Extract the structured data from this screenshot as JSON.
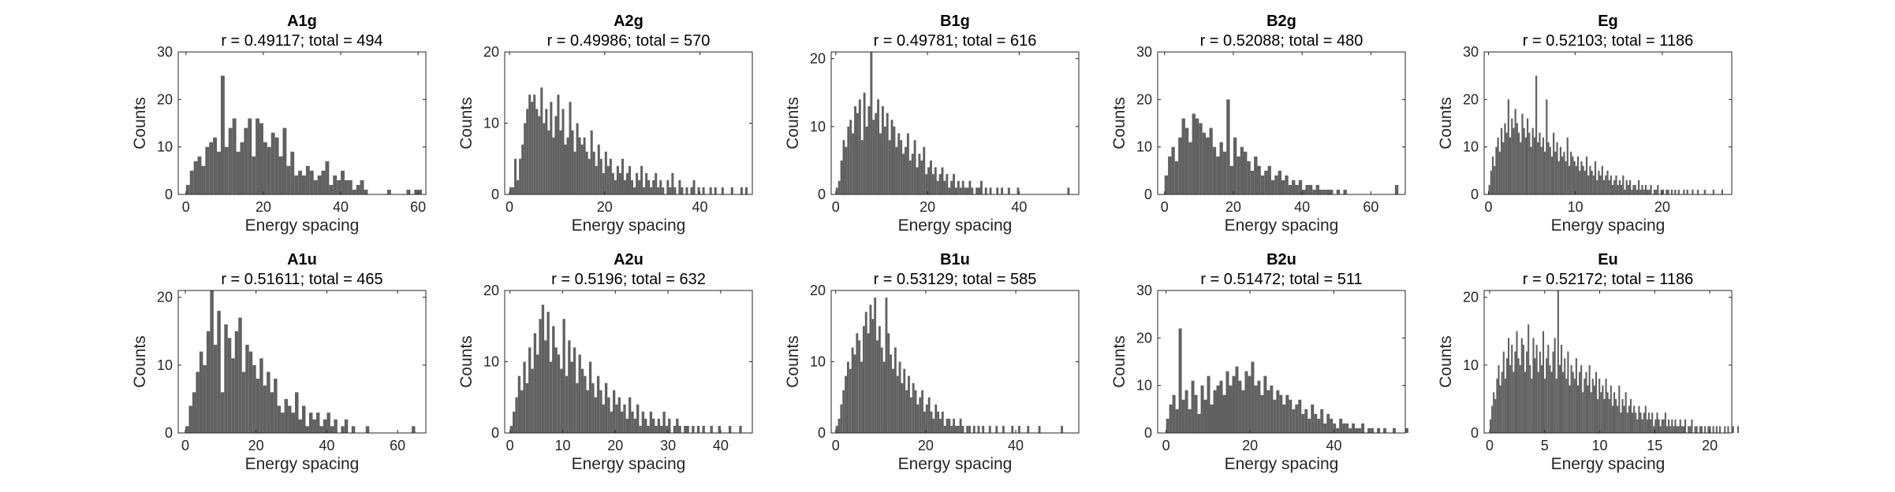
{
  "chart_data": [
    {
      "type": "bar",
      "title": "A1g",
      "subtitle": "r = 0.49117; total = 494",
      "xlabel": "Energy spacing",
      "ylabel": "Counts",
      "xlim": [
        -2,
        62
      ],
      "ylim": [
        0,
        30
      ],
      "xticks": [
        0,
        20,
        40,
        60
      ],
      "yticks": [
        0,
        10,
        20,
        30
      ],
      "bar_color": "#616161",
      "bin_width": 1,
      "bin_start": 0,
      "counts": [
        2,
        5,
        7,
        8,
        6,
        10,
        11,
        12,
        9,
        25,
        10,
        14,
        16,
        9,
        11,
        14,
        16,
        8,
        16,
        15,
        11,
        10,
        13,
        12,
        8,
        14,
        6,
        9,
        4,
        5,
        4,
        6,
        5,
        3,
        4,
        5,
        7,
        2,
        4,
        3,
        5,
        3,
        3,
        1,
        2,
        3,
        1,
        0,
        0,
        0,
        0,
        0,
        1,
        0,
        0,
        0,
        0,
        1,
        0,
        1,
        1
      ]
    },
    {
      "type": "bar",
      "title": "A2g",
      "subtitle": "r = 0.49986; total = 570",
      "xlabel": "Energy spacing",
      "ylabel": "Counts",
      "xlim": [
        -1,
        51
      ],
      "ylim": [
        0,
        20
      ],
      "xticks": [
        0,
        20,
        40
      ],
      "yticks": [
        0,
        10,
        20
      ],
      "bar_color": "#616161",
      "bin_width": 0.5,
      "bin_start": 0,
      "counts": [
        1,
        1,
        5,
        2,
        5,
        7,
        10,
        12,
        14,
        13,
        14,
        12,
        11,
        15,
        10,
        12,
        9,
        13,
        8,
        11,
        14,
        9,
        12,
        7,
        8,
        13,
        9,
        6,
        10,
        8,
        7,
        8,
        6,
        5,
        9,
        6,
        4,
        7,
        5,
        3,
        6,
        4,
        5,
        3,
        2,
        4,
        3,
        5,
        2,
        3,
        4,
        2,
        1,
        3,
        2,
        4,
        1,
        3,
        2,
        1,
        2,
        3,
        1,
        2,
        1,
        0,
        2,
        1,
        3,
        1,
        0,
        2,
        1,
        0,
        1,
        0,
        1,
        2,
        0,
        1,
        0,
        1,
        0,
        0,
        1,
        0,
        1,
        0,
        0,
        1,
        0,
        0,
        0,
        1,
        0,
        0,
        0,
        1,
        0,
        1
      ]
    },
    {
      "type": "bar",
      "title": "B1g",
      "subtitle": "r = 0.49781; total = 616",
      "xlabel": "Energy spacing",
      "ylabel": "Counts",
      "xlim": [
        -1,
        53
      ],
      "ylim": [
        0,
        21
      ],
      "xticks": [
        0,
        20,
        40
      ],
      "yticks": [
        0,
        10,
        20
      ],
      "bar_color": "#616161",
      "bin_width": 0.5,
      "bin_start": 0,
      "counts": [
        1,
        2,
        5,
        8,
        7,
        10,
        11,
        9,
        13,
        12,
        14,
        8,
        15,
        10,
        13,
        21,
        11,
        12,
        14,
        9,
        13,
        10,
        12,
        8,
        11,
        10,
        7,
        9,
        8,
        6,
        7,
        9,
        5,
        6,
        8,
        4,
        6,
        5,
        7,
        3,
        4,
        5,
        3,
        4,
        2,
        3,
        4,
        2,
        3,
        1,
        2,
        3,
        1,
        2,
        1,
        2,
        1,
        1,
        2,
        1,
        0,
        1,
        1,
        2,
        0,
        1,
        0,
        1,
        0,
        0,
        1,
        0,
        1,
        0,
        0,
        1,
        0,
        0,
        0,
        1,
        0,
        0,
        0,
        0,
        0,
        0,
        0,
        0,
        0,
        0,
        0,
        0,
        0,
        0,
        0,
        0,
        0,
        0,
        0,
        0,
        0,
        1
      ]
    },
    {
      "type": "bar",
      "title": "B2g",
      "subtitle": "r = 0.52088; total = 480",
      "xlabel": "Energy spacing",
      "ylabel": "Counts",
      "xlim": [
        -2,
        70
      ],
      "ylim": [
        0,
        30
      ],
      "xticks": [
        0,
        20,
        40,
        60
      ],
      "yticks": [
        0,
        10,
        20,
        30
      ],
      "bar_color": "#616161",
      "bin_width": 1,
      "bin_start": 0,
      "counts": [
        4,
        8,
        10,
        7,
        12,
        16,
        14,
        11,
        17,
        16,
        15,
        13,
        12,
        14,
        10,
        8,
        11,
        9,
        20,
        6,
        12,
        8,
        10,
        9,
        7,
        5,
        8,
        6,
        4,
        5,
        6,
        3,
        4,
        5,
        3,
        4,
        2,
        3,
        2,
        3,
        1,
        2,
        2,
        1,
        2,
        1,
        1,
        1,
        1,
        0,
        1,
        0,
        1,
        0,
        0,
        0,
        0,
        0,
        0,
        0,
        0,
        0,
        0,
        0,
        0,
        0,
        0,
        2
      ]
    },
    {
      "type": "bar",
      "title": "Eg",
      "subtitle": "r = 0.52103; total = 1186",
      "xlabel": "Energy spacing",
      "ylabel": "Counts",
      "xlim": [
        -0.5,
        28
      ],
      "ylim": [
        0,
        30
      ],
      "xticks": [
        0,
        10,
        20
      ],
      "yticks": [
        0,
        10,
        20,
        30
      ],
      "bar_color": "#616161",
      "bin_width": 0.2,
      "bin_start": 0,
      "counts": [
        2,
        5,
        8,
        6,
        10,
        12,
        9,
        14,
        11,
        15,
        13,
        20,
        12,
        16,
        14,
        18,
        15,
        13,
        11,
        17,
        14,
        12,
        16,
        13,
        10,
        14,
        12,
        25,
        11,
        13,
        10,
        12,
        9,
        20,
        11,
        10,
        8,
        13,
        9,
        11,
        7,
        10,
        8,
        9,
        7,
        12,
        6,
        9,
        8,
        7,
        6,
        8,
        5,
        7,
        6,
        5,
        8,
        4,
        6,
        5,
        4,
        7,
        3,
        5,
        4,
        6,
        3,
        4,
        5,
        3,
        4,
        2,
        3,
        4,
        2,
        3,
        2,
        4,
        1,
        3,
        2,
        3,
        1,
        2,
        2,
        1,
        3,
        1,
        2,
        1,
        2,
        1,
        1,
        2,
        0,
        1,
        1,
        2,
        0,
        1,
        1,
        0,
        1,
        1,
        0,
        1,
        0,
        1,
        0,
        1,
        0,
        0,
        1,
        0,
        1,
        0,
        0,
        1,
        0,
        0,
        1,
        0,
        0,
        0,
        1,
        0,
        0,
        0,
        0,
        1,
        0,
        0,
        0,
        0,
        1
      ]
    },
    {
      "type": "bar",
      "title": "A1u",
      "subtitle": "r = 0.51611; total = 465",
      "xlabel": "Energy spacing",
      "ylabel": "Counts",
      "xlim": [
        -2,
        68
      ],
      "ylim": [
        0,
        21
      ],
      "xticks": [
        0,
        20,
        40,
        60
      ],
      "yticks": [
        0,
        10,
        20
      ],
      "bar_color": "#616161",
      "bin_width": 1,
      "bin_start": 0,
      "counts": [
        1,
        4,
        6,
        9,
        12,
        10,
        15,
        21,
        13,
        18,
        6,
        16,
        14,
        11,
        15,
        17,
        9,
        13,
        12,
        10,
        8,
        11,
        7,
        9,
        6,
        8,
        4,
        3,
        5,
        4,
        3,
        6,
        2,
        4,
        1,
        3,
        2,
        3,
        1,
        2,
        3,
        1,
        2,
        0,
        1,
        2,
        0,
        1,
        0,
        0,
        0,
        1,
        0,
        0,
        0,
        0,
        0,
        0,
        0,
        0,
        0,
        0,
        0,
        0,
        1
      ]
    },
    {
      "type": "bar",
      "title": "A2u",
      "subtitle": "r = 0.5196; total = 632",
      "xlabel": "Energy spacing",
      "ylabel": "Counts",
      "xlim": [
        -1,
        46
      ],
      "ylim": [
        0,
        20
      ],
      "xticks": [
        0,
        10,
        20,
        30,
        40
      ],
      "yticks": [
        0,
        10,
        20
      ],
      "bar_color": "#616161",
      "bin_width": 0.5,
      "bin_start": 0,
      "counts": [
        1,
        3,
        5,
        8,
        6,
        10,
        7,
        12,
        9,
        14,
        11,
        16,
        18,
        13,
        17,
        10,
        15,
        12,
        11,
        9,
        16,
        8,
        13,
        10,
        12,
        7,
        11,
        9,
        8,
        6,
        10,
        7,
        5,
        8,
        6,
        4,
        7,
        5,
        3,
        6,
        4,
        5,
        3,
        4,
        2,
        5,
        3,
        2,
        4,
        1,
        3,
        2,
        1,
        3,
        2,
        1,
        2,
        1,
        3,
        1,
        2,
        0,
        1,
        2,
        1,
        0,
        1,
        1,
        0,
        1,
        0,
        1,
        0,
        1,
        0,
        0,
        1,
        0,
        0,
        1,
        0,
        0,
        0,
        1,
        0,
        0,
        0,
        1
      ]
    },
    {
      "type": "bar",
      "title": "B1u",
      "subtitle": "r = 0.53129; total = 585",
      "xlabel": "Energy spacing",
      "ylabel": "Counts",
      "xlim": [
        -1,
        54
      ],
      "ylim": [
        0,
        20
      ],
      "xticks": [
        0,
        20,
        40
      ],
      "yticks": [
        0,
        10,
        20
      ],
      "bar_color": "#616161",
      "bin_width": 0.5,
      "bin_start": 0,
      "counts": [
        1,
        2,
        4,
        6,
        8,
        10,
        9,
        12,
        11,
        14,
        13,
        10,
        15,
        17,
        14,
        18,
        16,
        19,
        13,
        15,
        12,
        10,
        19,
        14,
        11,
        9,
        12,
        8,
        10,
        7,
        9,
        6,
        8,
        5,
        7,
        6,
        4,
        5,
        6,
        3,
        4,
        5,
        3,
        2,
        4,
        3,
        2,
        3,
        1,
        2,
        2,
        1,
        2,
        1,
        1,
        2,
        1,
        0,
        1,
        1,
        0,
        1,
        0,
        1,
        0,
        1,
        0,
        0,
        1,
        0,
        0,
        1,
        0,
        0,
        1,
        0,
        0,
        0,
        1,
        0,
        0,
        1,
        0,
        0,
        0,
        1,
        0,
        0,
        0,
        0,
        1,
        0,
        0,
        0,
        0,
        0,
        0,
        0,
        0,
        0,
        1
      ]
    },
    {
      "type": "bar",
      "title": "B2u",
      "subtitle": "r = 0.51472; total = 511",
      "xlabel": "Energy spacing",
      "ylabel": "Counts",
      "xlim": [
        -2,
        57
      ],
      "ylim": [
        0,
        30
      ],
      "xticks": [
        0,
        20,
        40
      ],
      "yticks": [
        0,
        10,
        20,
        30
      ],
      "bar_color": "#616161",
      "bin_width": 0.75,
      "bin_start": 0,
      "counts": [
        3,
        6,
        8,
        5,
        22,
        7,
        9,
        5,
        11,
        8,
        4,
        10,
        7,
        12,
        6,
        9,
        10,
        11,
        8,
        13,
        10,
        12,
        14,
        11,
        9,
        13,
        12,
        15,
        10,
        11,
        8,
        12,
        9,
        10,
        7,
        9,
        8,
        6,
        8,
        7,
        5,
        6,
        7,
        4,
        5,
        3,
        6,
        4,
        3,
        5,
        2,
        4,
        3,
        2,
        1,
        3,
        2,
        2,
        1,
        2,
        1,
        1,
        2,
        0,
        1,
        1,
        0,
        1,
        0,
        1,
        0,
        0,
        1,
        0,
        0,
        0,
        1
      ]
    },
    {
      "type": "bar",
      "title": "Eu",
      "subtitle": "r = 0.52172; total = 1186",
      "xlabel": "Energy spacing",
      "ylabel": "Counts",
      "xlim": [
        -0.5,
        22
      ],
      "ylim": [
        0,
        21
      ],
      "xticks": [
        0,
        5,
        10,
        15,
        20
      ],
      "yticks": [
        0,
        10,
        20
      ],
      "bar_color": "#616161",
      "bin_width": 0.15,
      "bin_start": 0,
      "counts": [
        2,
        4,
        6,
        5,
        8,
        10,
        7,
        9,
        12,
        8,
        11,
        14,
        10,
        13,
        9,
        12,
        15,
        11,
        10,
        14,
        13,
        9,
        12,
        16,
        10,
        8,
        14,
        11,
        13,
        9,
        12,
        10,
        15,
        8,
        11,
        13,
        10,
        9,
        12,
        14,
        8,
        21,
        10,
        13,
        9,
        11,
        8,
        12,
        7,
        10,
        9,
        8,
        11,
        7,
        9,
        10,
        6,
        8,
        9,
        7,
        10,
        6,
        8,
        7,
        9,
        5,
        8,
        6,
        7,
        5,
        8,
        6,
        5,
        7,
        4,
        6,
        5,
        4,
        7,
        3,
        5,
        4,
        6,
        3,
        4,
        5,
        3,
        4,
        3,
        2,
        4,
        3,
        2,
        3,
        4,
        2,
        3,
        2,
        3,
        1,
        2,
        3,
        2,
        1,
        2,
        2,
        3,
        1,
        2,
        1,
        2,
        1,
        2,
        1,
        1,
        2,
        1,
        1,
        2,
        0,
        1,
        1,
        2,
        0,
        1,
        1,
        0,
        1,
        1,
        0,
        1,
        0,
        1,
        1,
        0,
        1,
        0,
        1,
        0,
        1,
        0,
        0,
        1,
        0,
        1,
        0,
        0,
        1,
        0,
        0,
        1
      ]
    }
  ]
}
